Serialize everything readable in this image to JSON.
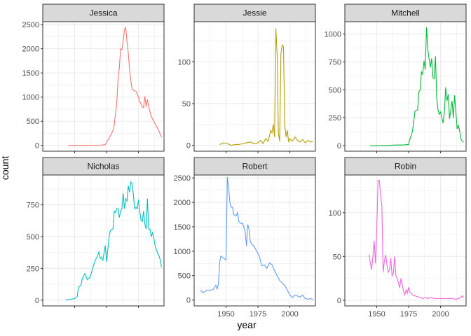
{
  "chart_data": {
    "type": "line",
    "xlabel": "year",
    "ylabel": "count",
    "title": "",
    "grid": true,
    "legend": "none",
    "facet_layout": "2 rows x 3 columns",
    "panels": [
      {
        "name": "Jessica",
        "color": "#F8766D",
        "ylim": [
          -120,
          2560
        ],
        "yticks": [
          0,
          500,
          1000,
          1500,
          2000,
          2500
        ],
        "xlim": [
          1925,
          2020
        ],
        "xticks": [
          1950,
          1975,
          2000
        ],
        "xtick_labels_shown": false,
        "x": [
          1945,
          1955,
          1965,
          1970,
          1974,
          1976,
          1978,
          1980,
          1981,
          1983,
          1984,
          1985,
          1986,
          1987,
          1988,
          1989,
          1990,
          1991,
          1992,
          1993,
          1994,
          1995,
          1996,
          1998,
          2000,
          2001,
          2002,
          2003,
          2004,
          2005,
          2006,
          2007,
          2008,
          2009,
          2010,
          2012,
          2014,
          2016,
          2018
        ],
        "y": [
          0,
          0,
          2,
          5,
          15,
          110,
          200,
          310,
          420,
          880,
          1380,
          1600,
          2000,
          1980,
          2150,
          2400,
          2440,
          2150,
          1920,
          1570,
          1350,
          1160,
          1140,
          1120,
          1000,
          900,
          860,
          800,
          780,
          1020,
          800,
          950,
          800,
          700,
          600,
          500,
          400,
          300,
          170
        ]
      },
      {
        "name": "Jessie",
        "color": "#B79F00",
        "ylim": [
          -7,
          148
        ],
        "yticks": [
          0,
          50,
          100
        ],
        "xlim": [
          1925,
          2020
        ],
        "xticks": [
          1950,
          1975,
          2000
        ],
        "xtick_labels_shown": false,
        "x": [
          1945,
          1948,
          1951,
          1954,
          1957,
          1960,
          1963,
          1966,
          1969,
          1972,
          1975,
          1977,
          1979,
          1981,
          1983,
          1985,
          1986,
          1987,
          1988,
          1989,
          1990,
          1991,
          1992,
          1993,
          1994,
          1995,
          1996,
          1997,
          1998,
          1999,
          2000,
          2002,
          2004,
          2006,
          2008,
          2010,
          2012,
          2014,
          2016,
          2018
        ],
        "y": [
          1,
          3,
          2,
          0,
          1,
          1,
          2,
          3,
          4,
          2,
          3,
          6,
          2,
          8,
          5,
          18,
          15,
          25,
          10,
          140,
          110,
          15,
          5,
          110,
          120,
          118,
          25,
          10,
          18,
          4,
          8,
          5,
          10,
          6,
          4,
          7,
          3,
          6,
          4,
          5
        ]
      },
      {
        "name": "Mitchell",
        "color": "#00BA38",
        "ylim": [
          -50,
          1110
        ],
        "yticks": [
          0,
          250,
          500,
          750,
          1000
        ],
        "xlim": [
          1925,
          2020
        ],
        "xticks": [
          1950,
          1975,
          2000
        ],
        "xtick_labels_shown": false,
        "x": [
          1945,
          1955,
          1965,
          1970,
          1975,
          1976,
          1977,
          1978,
          1980,
          1982,
          1983,
          1984,
          1985,
          1986,
          1987,
          1988,
          1989,
          1990,
          1991,
          1992,
          1993,
          1994,
          1995,
          1996,
          1997,
          1998,
          1999,
          2000,
          2001,
          2002,
          2003,
          2004,
          2005,
          2006,
          2007,
          2008,
          2009,
          2010,
          2011,
          2012,
          2013,
          2014,
          2015,
          2016,
          2017,
          2018
        ],
        "y": [
          0,
          0,
          5,
          5,
          10,
          60,
          90,
          130,
          310,
          320,
          480,
          500,
          660,
          640,
          760,
          680,
          1060,
          860,
          780,
          700,
          780,
          610,
          600,
          800,
          420,
          320,
          280,
          300,
          250,
          200,
          300,
          520,
          400,
          460,
          240,
          320,
          400,
          250,
          450,
          300,
          150,
          180,
          130,
          60,
          40,
          30
        ]
      },
      {
        "name": "Nicholas",
        "color": "#00BFC4",
        "ylim": [
          -45,
          985
        ],
        "yticks": [
          0,
          250,
          500,
          750
        ],
        "xlim": [
          1925,
          2020
        ],
        "xticks": [
          1950,
          1975,
          2000
        ],
        "xtick_labels_shown": false,
        "x": [
          1943,
          1945,
          1947,
          1950,
          1952,
          1953,
          1955,
          1956,
          1958,
          1960,
          1962,
          1963,
          1964,
          1966,
          1968,
          1969,
          1970,
          1971,
          1972,
          1973,
          1974,
          1975,
          1977,
          1978,
          1980,
          1981,
          1982,
          1983,
          1984,
          1985,
          1986,
          1987,
          1988,
          1989,
          1990,
          1991,
          1992,
          1993,
          1994,
          1995,
          1996,
          1997,
          1998,
          1999,
          2000,
          2001,
          2002,
          2003,
          2004,
          2005,
          2006,
          2007,
          2008,
          2009,
          2010,
          2011,
          2012,
          2013,
          2014,
          2015,
          2016,
          2017,
          2018
        ],
        "y": [
          0,
          5,
          8,
          12,
          30,
          100,
          120,
          170,
          210,
          160,
          180,
          210,
          250,
          310,
          350,
          380,
          330,
          340,
          310,
          370,
          430,
          300,
          500,
          550,
          560,
          700,
          690,
          720,
          720,
          650,
          700,
          720,
          840,
          720,
          800,
          780,
          900,
          850,
          930,
          920,
          830,
          720,
          730,
          720,
          790,
          700,
          630,
          620,
          700,
          600,
          560,
          800,
          560,
          560,
          500,
          530,
          490,
          430,
          400,
          370,
          350,
          320,
          260
        ]
      },
      {
        "name": "Robert",
        "color": "#619CFF",
        "ylim": [
          -120,
          2560
        ],
        "yticks": [
          0,
          500,
          1000,
          1500,
          2000,
          2500
        ],
        "xlim": [
          1925,
          2020
        ],
        "xticks": [
          1950,
          1975,
          2000
        ],
        "xtick_labels_shown": true,
        "x": [
          1930,
          1932,
          1935,
          1938,
          1940,
          1942,
          1943,
          1944,
          1945,
          1946,
          1948,
          1950,
          1951,
          1952,
          1953,
          1954,
          1955,
          1956,
          1958,
          1959,
          1960,
          1962,
          1963,
          1965,
          1966,
          1967,
          1968,
          1969,
          1970,
          1972,
          1974,
          1976,
          1978,
          1980,
          1982,
          1984,
          1986,
          1988,
          1990,
          1992,
          1994,
          1996,
          1998,
          2000,
          2002,
          2004,
          2006,
          2008,
          2010,
          2012,
          2014,
          2016,
          2018
        ],
        "y": [
          200,
          150,
          200,
          200,
          220,
          300,
          230,
          320,
          780,
          900,
          860,
          820,
          2520,
          2300,
          2000,
          1900,
          1900,
          1750,
          1720,
          1800,
          1610,
          1560,
          1570,
          1400,
          1100,
          1550,
          1450,
          1200,
          1150,
          1100,
          1000,
          900,
          700,
          720,
          650,
          760,
          720,
          600,
          500,
          400,
          350,
          300,
          200,
          100,
          50,
          100,
          80,
          60,
          100,
          30,
          20,
          30,
          10
        ]
      },
      {
        "name": "Robin",
        "color": "#F564E3",
        "ylim": [
          -6.5,
          143
        ],
        "yticks": [
          0,
          50,
          100
        ],
        "xlim": [
          1925,
          2020
        ],
        "xticks": [
          1950,
          1975,
          2000
        ],
        "xtick_labels_shown": true,
        "x": [
          1944,
          1945,
          1946,
          1947,
          1948,
          1949,
          1950,
          1951,
          1952,
          1953,
          1954,
          1955,
          1956,
          1957,
          1958,
          1959,
          1960,
          1961,
          1962,
          1963,
          1964,
          1965,
          1966,
          1967,
          1968,
          1969,
          1970,
          1971,
          1972,
          1973,
          1974,
          1975,
          1976,
          1977,
          1978,
          1980,
          1982,
          1984,
          1986,
          1988,
          1990,
          1992,
          1995,
          2000,
          2005,
          2010,
          2012,
          2014,
          2016,
          2017,
          2018
        ],
        "y": [
          52,
          42,
          35,
          50,
          68,
          42,
          80,
          137,
          137,
          120,
          108,
          32,
          45,
          52,
          40,
          32,
          35,
          48,
          28,
          30,
          50,
          28,
          25,
          20,
          14,
          25,
          18,
          10,
          6,
          12,
          8,
          15,
          9,
          8,
          6,
          5,
          4,
          3,
          2,
          3,
          2,
          3,
          2,
          2,
          2,
          2,
          1,
          2,
          3,
          5,
          3
        ]
      }
    ]
  }
}
